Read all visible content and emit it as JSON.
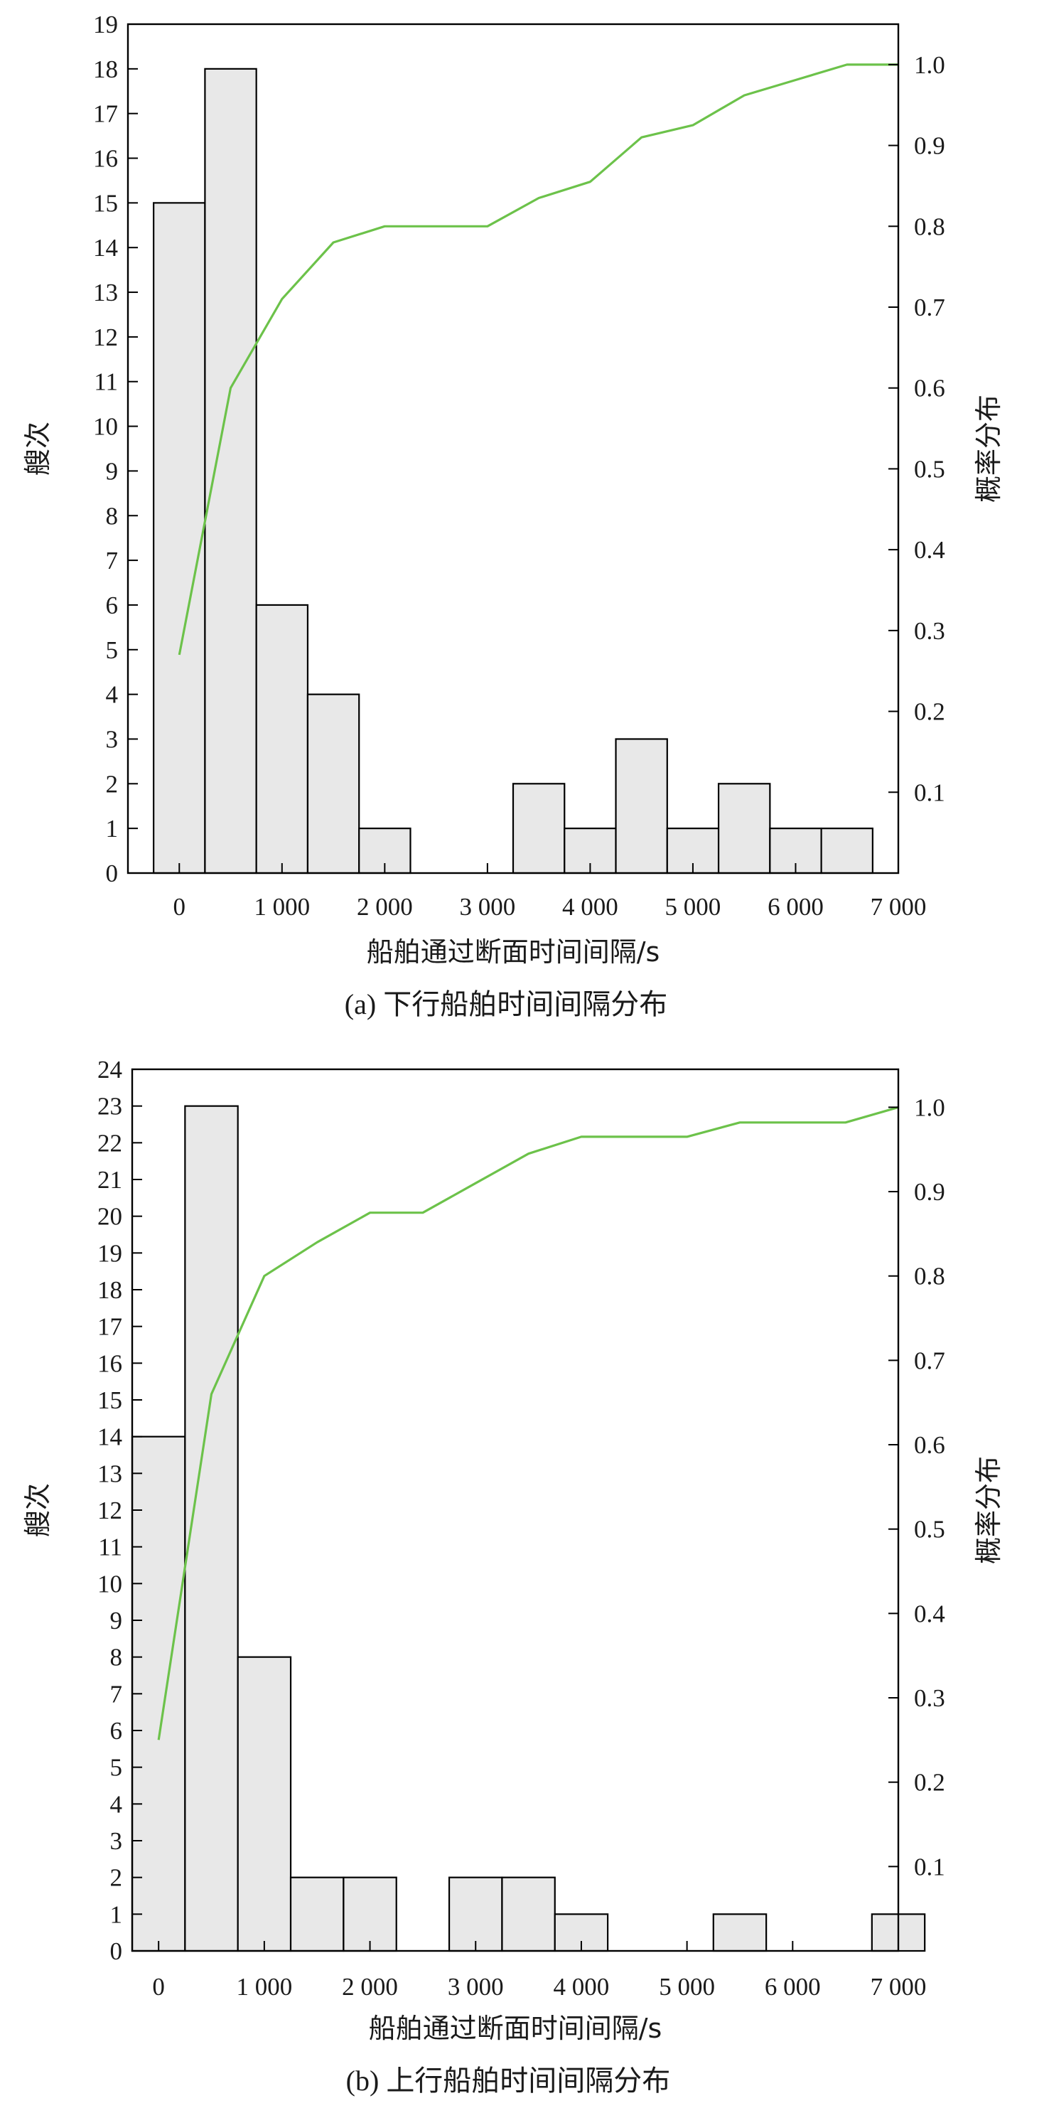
{
  "colors": {
    "bar_fill": "#e8e8e8",
    "bar_stroke": "#000000",
    "cdf_line": "#6cc24a"
  },
  "chart_data": [
    {
      "type": "bar",
      "subtype": "histogram with cumulative line",
      "caption": "(a) 下行船舶时间间隔分布",
      "xlabel": "船舶通过断面时间间隔/s",
      "ylabel": "艘次",
      "y2label": "概率分布",
      "xlim": [
        -500,
        7000
      ],
      "xticks": [
        0,
        1000,
        2000,
        3000,
        4000,
        5000,
        6000,
        7000
      ],
      "xtick_labels": [
        "0",
        "1 000",
        "2 000",
        "3 000",
        "4 000",
        "5 000",
        "6 000",
        "7 000"
      ],
      "ylim": [
        0,
        19
      ],
      "yticks": [
        "0",
        "1",
        "2",
        "3",
        "4",
        "5",
        "6",
        "7",
        "8",
        "9",
        "10",
        "11",
        "12",
        "13",
        "14",
        "15",
        "16",
        "17",
        "18",
        "19"
      ],
      "y2lim": [
        0,
        1.05
      ],
      "y2ticks": [
        "0.1",
        "0.2",
        "0.3",
        "0.4",
        "0.5",
        "0.6",
        "0.7",
        "0.8",
        "0.9",
        "1.0"
      ],
      "bin_width": 500,
      "bin_centers": [
        0,
        500,
        1000,
        1500,
        2000,
        2500,
        3000,
        3500,
        4000,
        4500,
        5000,
        5500,
        6000,
        6500
      ],
      "values": [
        15,
        18,
        6,
        4,
        1,
        0,
        0,
        2,
        1,
        3,
        1,
        2,
        1,
        1
      ],
      "cdf": {
        "x": [
          0,
          500,
          1000,
          1500,
          2000,
          2500,
          3000,
          3500,
          4000,
          4500,
          5000,
          5500,
          6000,
          6500,
          7000
        ],
        "y": [
          0.27,
          0.6,
          0.71,
          0.78,
          0.8,
          0.8,
          0.8,
          0.835,
          0.855,
          0.91,
          0.925,
          0.962,
          0.981,
          1.0,
          1.0
        ]
      },
      "grid": false,
      "legend": "none"
    },
    {
      "type": "bar",
      "subtype": "histogram with cumulative line",
      "caption": "(b) 上行船舶时间间隔分布",
      "xlabel": "船舶通过断面时间间隔/s",
      "ylabel": "艘次",
      "y2label": "概率分布",
      "xlim": [
        -250,
        7000
      ],
      "xticks": [
        0,
        1000,
        2000,
        3000,
        4000,
        5000,
        6000,
        7000
      ],
      "xtick_labels": [
        "0",
        "1 000",
        "2 000",
        "3 000",
        "4 000",
        "5 000",
        "6 000",
        "7 000"
      ],
      "ylim": [
        0,
        24
      ],
      "yticks": [
        "0",
        "1",
        "2",
        "3",
        "4",
        "5",
        "6",
        "7",
        "8",
        "9",
        "10",
        "11",
        "12",
        "13",
        "14",
        "15",
        "16",
        "17",
        "18",
        "19",
        "20",
        "21",
        "22",
        "23",
        "24"
      ],
      "y2lim": [
        0,
        1.045
      ],
      "y2ticks": [
        "0.1",
        "0.2",
        "0.3",
        "0.4",
        "0.5",
        "0.6",
        "0.7",
        "0.8",
        "0.9",
        "1.0"
      ],
      "bin_width": 500,
      "bin_centers": [
        0,
        500,
        1000,
        1500,
        2000,
        2500,
        3000,
        3500,
        4000,
        4500,
        5000,
        5500,
        6000,
        6500,
        7000
      ],
      "values": [
        14,
        23,
        8,
        2,
        2,
        0,
        2,
        2,
        1,
        0,
        0,
        1,
        0,
        0,
        1
      ],
      "cdf": {
        "x": [
          0,
          500,
          1000,
          1500,
          2000,
          2500,
          3000,
          3500,
          4000,
          4500,
          5000,
          5500,
          6000,
          6500,
          7000
        ],
        "y": [
          0.25,
          0.66,
          0.8,
          0.84,
          0.875,
          0.875,
          0.91,
          0.945,
          0.965,
          0.965,
          0.965,
          0.982,
          0.982,
          0.982,
          1.0
        ]
      },
      "grid": false,
      "legend": "none"
    }
  ]
}
